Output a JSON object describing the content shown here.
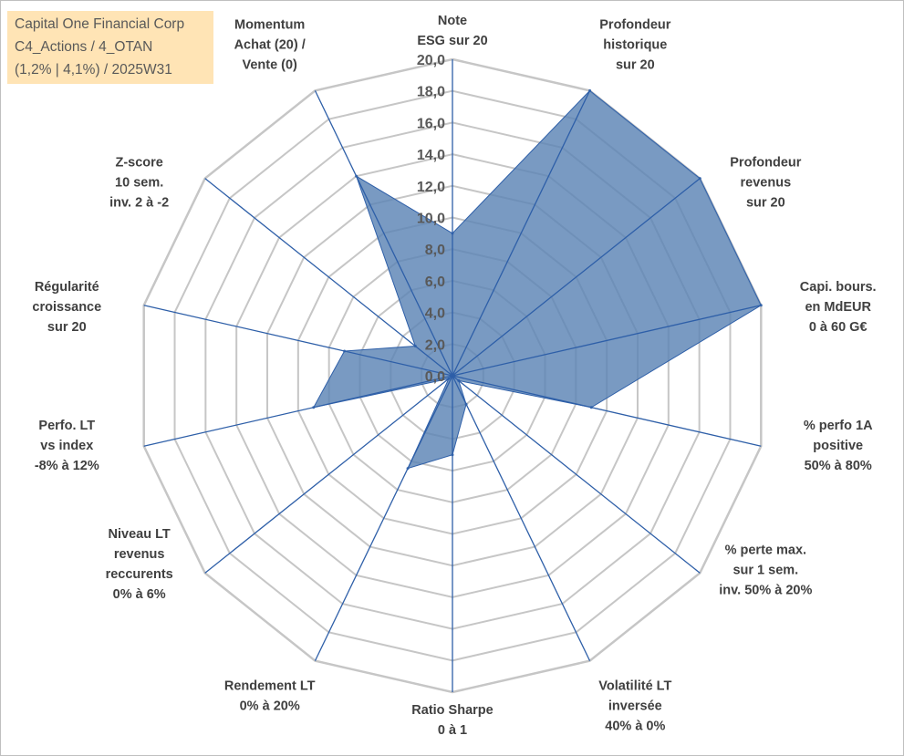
{
  "title_box": {
    "line1": "Capital One Financial Corp",
    "line2": "C4_Actions / 4_OTAN",
    "line3": "(1,2% | 4,1%) / 2025W31"
  },
  "colors": {
    "fill": "#5b84b4",
    "axis": "#2e5fa8",
    "grid": "#c6c6c6",
    "title_bg": "#ffe4b5"
  },
  "chart_data": {
    "type": "radar",
    "rmin": 0,
    "rmax": 20,
    "tick_step": 2,
    "tick_labels": [
      "0,0",
      "2,0",
      "4,0",
      "6,0",
      "8,0",
      "10,0",
      "12,0",
      "14,0",
      "16,0",
      "18,0",
      "20,0"
    ],
    "axes": [
      [
        "Note",
        "ESG sur 20"
      ],
      [
        "Profondeur",
        "historique",
        "sur 20"
      ],
      [
        "Profondeur",
        "revenus",
        "sur 20"
      ],
      [
        "Capi. bours.",
        "en MdEUR",
        "0 à 60 G€"
      ],
      [
        "% perfo 1A",
        "positive",
        "50% à 80%"
      ],
      [
        "% perte max.",
        "sur 1 sem.",
        "inv. 50% à 20%"
      ],
      [
        "Volatilité LT",
        "inversée",
        "40% à 0%"
      ],
      [
        "Ratio Sharpe",
        "0 à 1"
      ],
      [
        "Rendement LT",
        "0% à 20%"
      ],
      [
        "Niveau LT",
        "revenus",
        "reccurents",
        "0% à 6%"
      ],
      [
        "Perfo. LT",
        "vs index",
        "-8% à 12%"
      ],
      [
        "Régularité",
        "croissance",
        "sur 20"
      ],
      [
        "Z-score",
        "10 sem.",
        "inv. 2 à -2"
      ],
      [
        "Momentum",
        "Achat (20) /",
        "Vente (0)"
      ]
    ],
    "values": [
      9.0,
      20.0,
      20.0,
      20.0,
      9.0,
      0.5,
      2.0,
      5.0,
      6.5,
      0.3,
      9.0,
      7.0,
      3.0,
      14.0
    ]
  }
}
